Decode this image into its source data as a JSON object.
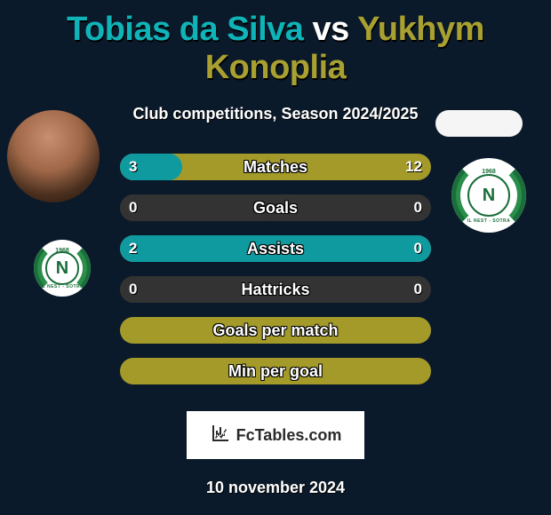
{
  "title": {
    "player1": "Tobias da Silva",
    "vs": "vs",
    "player2": "Yukhym Konoplia",
    "color1": "#0fb4b8",
    "color_vs": "#ffffff",
    "color2": "#a8a030"
  },
  "subtitle": "Club competitions, Season 2024/2025",
  "bars": [
    {
      "label": "Matches",
      "left": "3",
      "right": "12",
      "left_ratio": 0.2,
      "color_left": "#0f9aa0",
      "color_right": "#a39a2a"
    },
    {
      "label": "Goals",
      "left": "0",
      "right": "0",
      "left_ratio": 0.5,
      "color_left": "#333333",
      "color_right": "#333333"
    },
    {
      "label": "Assists",
      "left": "2",
      "right": "0",
      "left_ratio": 1.0,
      "color_left": "#0f9aa0",
      "color_right": "#a39a2a"
    },
    {
      "label": "Hattricks",
      "left": "0",
      "right": "0",
      "left_ratio": 0.5,
      "color_left": "#333333",
      "color_right": "#333333"
    },
    {
      "label": "Goals per match",
      "left": "",
      "right": "",
      "left_ratio": 0.0,
      "color_left": "#a39a2a",
      "color_right": "#a39a2a"
    },
    {
      "label": "Min per goal",
      "left": "",
      "right": "",
      "left_ratio": 0.0,
      "color_left": "#a39a2a",
      "color_right": "#a39a2a"
    }
  ],
  "badge": {
    "year": "1968",
    "letter": "N",
    "club_text": "IL NEST - SOTRA"
  },
  "footer": {
    "brand": "FcTables.com",
    "date": "10 november 2024"
  },
  "colors": {
    "background": "#0b1a2a",
    "pill_right": "#f5f5f5"
  }
}
